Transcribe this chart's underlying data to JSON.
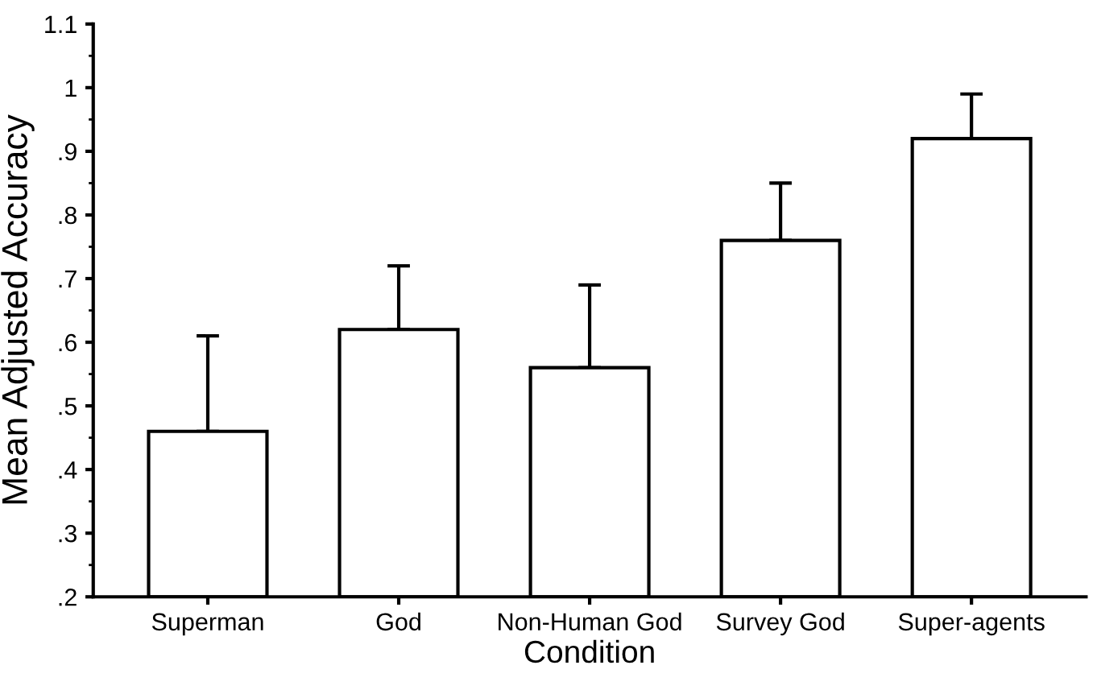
{
  "chart_data": {
    "type": "bar",
    "xlabel": "Condition",
    "ylabel": "Mean Adjusted Accuracy",
    "categories": [
      "Superman",
      "God",
      "Non-Human God",
      "Survey God",
      "Super-agents"
    ],
    "values": [
      0.46,
      0.62,
      0.56,
      0.76,
      0.92
    ],
    "errors": [
      [
        0.46,
        0.61
      ],
      [
        0.62,
        0.72
      ],
      [
        0.56,
        0.69
      ],
      [
        0.76,
        0.85
      ],
      [
        0.92,
        0.99
      ]
    ],
    "colors": [
      "#ffffff",
      "#ffffff",
      "#ffffff",
      "#ffffff",
      "#ffffff"
    ],
    "ylim": [
      0.2,
      1.1
    ],
    "yticks": [
      {
        "value": 0.2,
        "label": ".2"
      },
      {
        "value": 0.3,
        "label": ".3"
      },
      {
        "value": 0.4,
        "label": ".4"
      },
      {
        "value": 0.5,
        "label": ".5"
      },
      {
        "value": 0.6,
        "label": ".6"
      },
      {
        "value": 0.7,
        "label": ".7"
      },
      {
        "value": 0.8,
        "label": ".8"
      },
      {
        "value": 0.9,
        "label": ".9"
      },
      {
        "value": 1.0,
        "label": "1"
      },
      {
        "value": 1.1,
        "label": "1.1"
      }
    ],
    "grid": false
  }
}
